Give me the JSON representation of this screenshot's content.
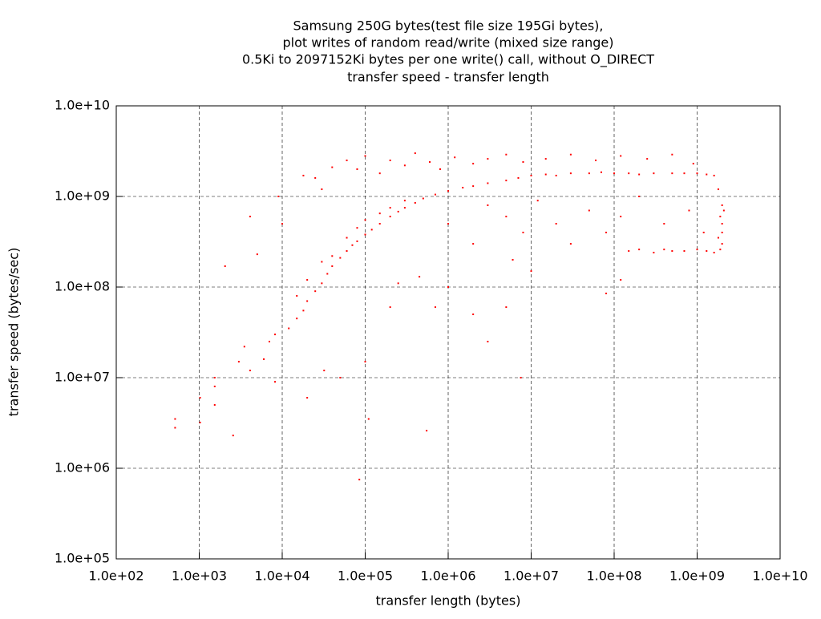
{
  "chart_data": {
    "type": "scatter",
    "title": [
      "Samsung 250G bytes(test file size 195Gi bytes),",
      "plot writes of random read/write (mixed size range)",
      "0.5Ki to 2097152Ki bytes per one write() call, without O_DIRECT",
      "transfer speed - transfer length"
    ],
    "x_label": "transfer length (bytes)",
    "y_label": "transfer speed (bytes/sec)",
    "log_x": true,
    "log_y": true,
    "grid": true,
    "xlim": [
      100,
      10000000000
    ],
    "ylim": [
      100000,
      10000000000
    ],
    "xticks": [
      {
        "value": 100,
        "label": "1.0e+02"
      },
      {
        "value": 1000,
        "label": "1.0e+03"
      },
      {
        "value": 10000,
        "label": "1.0e+04"
      },
      {
        "value": 100000,
        "label": "1.0e+05"
      },
      {
        "value": 1000000,
        "label": "1.0e+06"
      },
      {
        "value": 10000000,
        "label": "1.0e+07"
      },
      {
        "value": 100000000,
        "label": "1.0e+08"
      },
      {
        "value": 1000000000,
        "label": "1.0e+09"
      },
      {
        "value": 10000000000,
        "label": "1.0e+10"
      }
    ],
    "yticks": [
      {
        "value": 100000,
        "label": "1.0e+05"
      },
      {
        "value": 1000000,
        "label": "1.0e+06"
      },
      {
        "value": 10000000,
        "label": "1.0e+07"
      },
      {
        "value": 100000000,
        "label": "1.0e+08"
      },
      {
        "value": 1000000000,
        "label": "1.0e+09"
      },
      {
        "value": 10000000000,
        "label": "1.0e+10"
      }
    ],
    "series": [
      {
        "color": "#ff0000",
        "x": [
          512,
          512,
          1024,
          1024,
          1536,
          1536,
          1536,
          2048,
          2560,
          3000,
          3500,
          4096,
          4096,
          5000,
          6000,
          7000,
          8192,
          8192,
          9000,
          10000,
          12000,
          15000,
          18000,
          20000,
          25000,
          30000,
          35000,
          40000,
          50000,
          60000,
          70000,
          80000,
          100000,
          120000,
          150000,
          200000,
          250000,
          300000,
          400000,
          500000,
          700000,
          1000000,
          1500000,
          2000000,
          3000000,
          5000000,
          15000,
          20000,
          30000,
          40000,
          60000,
          80000,
          100000,
          150000,
          200000,
          300000,
          7000000.0,
          10000000.0,
          15000000.0,
          20000000.0,
          30000000.0,
          50000000.0,
          70000000.0,
          100000000.0,
          150000000.0,
          200000000.0,
          300000000.0,
          500000000.0,
          700000000.0,
          1000000000.0,
          1300000000.0,
          1600000000.0,
          1800000000.0,
          2000000000.0,
          2100000000.0,
          150000000.0,
          200000000.0,
          300000000.0,
          400000000.0,
          500000000.0,
          700000000.0,
          1000000000.0,
          1300000000.0,
          1600000000.0,
          1900000000.0,
          2000000000.0,
          2000000000.0,
          2000000000.0,
          1900000000.0,
          1800000000.0,
          60000,
          80000,
          100000.0,
          150000.0,
          200000.0,
          300000.0,
          400000.0,
          600000.0,
          800000.0,
          1200000.0,
          2000000.0,
          3000000.0,
          5000000.0,
          8000000.0,
          15000000.0,
          30000000.0,
          60000000.0,
          120000000.0,
          250000000.0,
          500000000.0,
          900000000.0,
          25000.0,
          30000.0,
          40000.0,
          18000.0,
          3000000.0,
          5000000.0,
          8000000.0,
          12000000.0,
          20000000.0,
          30000000.0,
          50000000.0,
          80000000.0,
          120000000.0,
          200000000.0,
          400000000.0,
          800000000.0,
          1200000000.0,
          6000000.0,
          10000000.0,
          2000000.0,
          1000000.0,
          85000.0,
          110000.0,
          550000.0,
          100000.0,
          2000000.0,
          3000000.0,
          5000000.0,
          7500000.0,
          1000000.0,
          700000.0,
          20000.0,
          32000.0,
          450000.0,
          250000.0,
          80000000.0,
          120000000.0,
          50000.0,
          200000.0
        ],
        "values": [
          3500000.0,
          2800000.0,
          6000000.0,
          3200000.0,
          10000000.0,
          8000000.0,
          5000000.0,
          170000000.0,
          2300000.0,
          15000000.0,
          22000000.0,
          600000000.0,
          12000000.0,
          230000000.0,
          16000000.0,
          25000000.0,
          9000000.0,
          30000000.0,
          1000000000.0,
          500000000.0,
          35000000.0,
          45000000.0,
          55000000.0,
          70000000.0,
          90000000.0,
          110000000.0,
          140000000.0,
          170000000.0,
          210000000.0,
          250000000.0,
          290000000.0,
          320000000.0,
          380000000.0,
          430000000.0,
          500000000.0,
          600000000.0,
          680000000.0,
          750000000.0,
          850000000.0,
          950000000.0,
          1050000000.0,
          1150000000.0,
          1250000000.0,
          1300000000.0,
          1400000000.0,
          1500000000.0,
          80000000.0,
          120000000.0,
          190000000.0,
          220000000.0,
          350000000.0,
          450000000.0,
          550000000.0,
          650000000.0,
          750000000.0,
          900000000.0,
          1600000000.0,
          1700000000.0,
          1750000000.0,
          1700000000.0,
          1800000000.0,
          1800000000.0,
          1850000000.0,
          1800000000.0,
          1800000000.0,
          1750000000.0,
          1800000000.0,
          1800000000.0,
          1800000000.0,
          1800000000.0,
          1750000000.0,
          1700000000.0,
          1200000000.0,
          800000000.0,
          700000000.0,
          250000000.0,
          260000000.0,
          240000000.0,
          260000000.0,
          250000000.0,
          250000000.0,
          260000000.0,
          250000000.0,
          240000000.0,
          260000000.0,
          300000000.0,
          400000000.0,
          500000000.0,
          600000000.0,
          350000000.0,
          2500000000.0,
          2000000000.0,
          2800000000.0,
          1800000000.0,
          2500000000.0,
          2200000000.0,
          3000000000.0,
          2400000000.0,
          2000000000.0,
          2700000000.0,
          2300000000.0,
          2600000000.0,
          2900000000.0,
          2400000000.0,
          2600000000.0,
          2900000000.0,
          2500000000.0,
          2800000000.0,
          2600000000.0,
          2900000000.0,
          2300000000.0,
          1600000000.0,
          1200000000.0,
          2100000000.0,
          1700000000.0,
          800000000.0,
          600000000.0,
          400000000.0,
          900000000.0,
          500000000.0,
          300000000.0,
          700000000.0,
          400000000.0,
          600000000.0,
          1000000000.0,
          500000000.0,
          700000000.0,
          400000000.0,
          200000000.0,
          150000000.0,
          300000000.0,
          500000000.0,
          750000.0,
          3500000.0,
          2600000.0,
          15000000.0,
          50000000.0,
          25000000.0,
          60000000.0,
          10000000.0,
          100000000.0,
          60000000.0,
          6000000.0,
          12000000.0,
          130000000.0,
          110000000.0,
          85000000.0,
          120000000.0,
          10000000.0,
          60000000.0
        ]
      }
    ]
  }
}
